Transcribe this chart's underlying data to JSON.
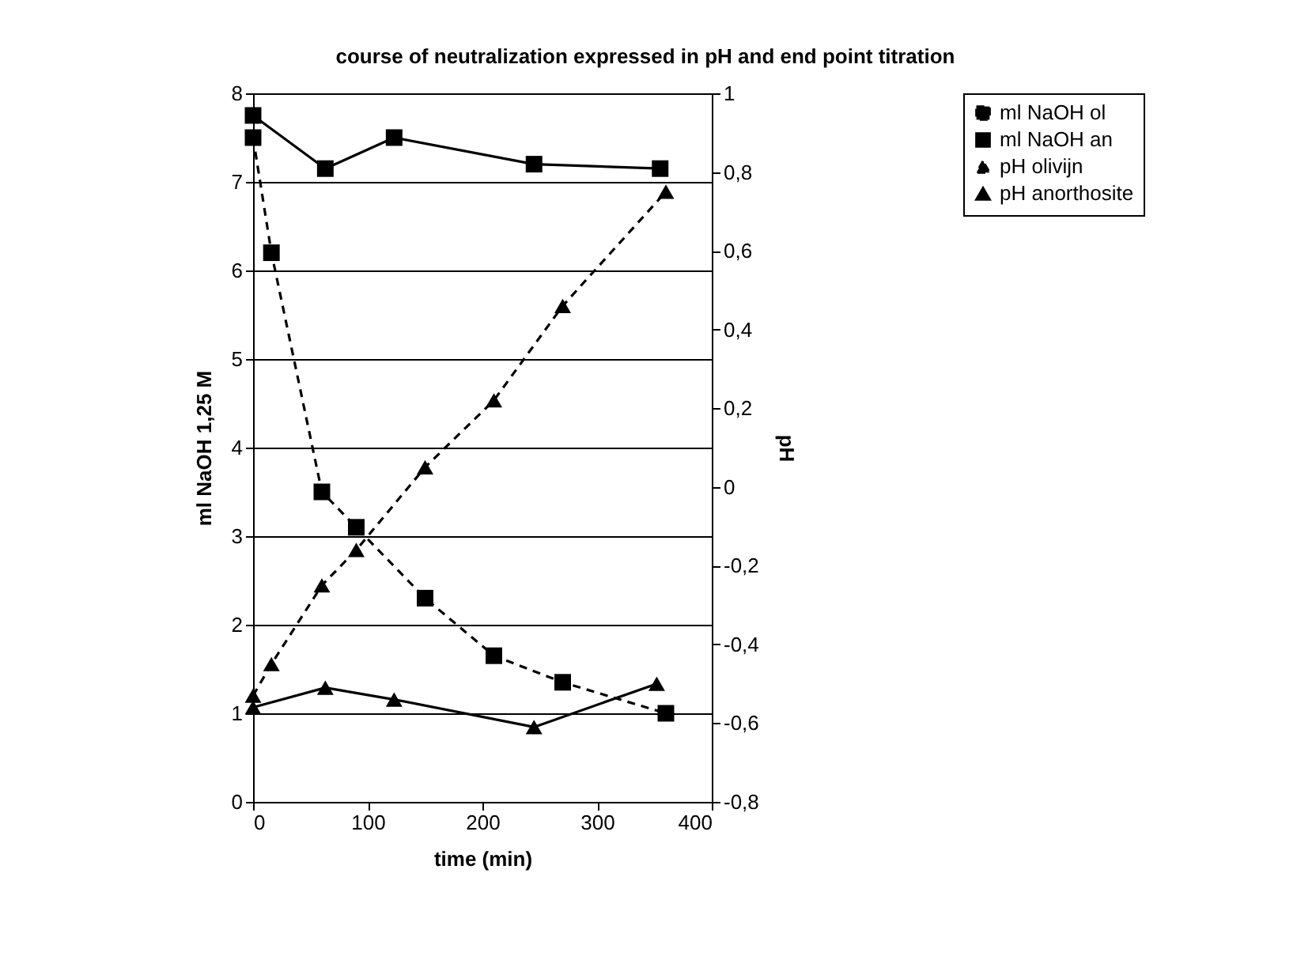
{
  "chart_data": {
    "type": "line",
    "title": "course of neutralization expressed in pH and end point titration",
    "xlabel": "time (min)",
    "ylabel": "ml NaOH 1,25 M",
    "y2label": "pH",
    "xlim": [
      0,
      400
    ],
    "xticks": [
      0,
      100,
      200,
      300,
      400
    ],
    "ylim": [
      0,
      8
    ],
    "yticks": [
      0,
      1,
      2,
      3,
      4,
      5,
      6,
      7,
      8
    ],
    "y2lim": [
      -0.8,
      1
    ],
    "y2ticks": [
      {
        "value": -0.8,
        "label": "-0,8"
      },
      {
        "value": -0.6,
        "label": "-0,6"
      },
      {
        "value": -0.4,
        "label": "-0,4"
      },
      {
        "value": -0.2,
        "label": "-0,2"
      },
      0,
      {
        "value": 0.2,
        "label": "0,2"
      },
      {
        "value": 0.4,
        "label": "0,4"
      },
      {
        "value": 0.6,
        "label": "0,6"
      },
      {
        "value": 0.8,
        "label": "0,8"
      },
      1
    ],
    "grid": "y",
    "legend": "right",
    "series": [
      {
        "name": "ml NaOH ol",
        "color": "#000000",
        "marker": "square",
        "line_style": "dashed",
        "x": [
          0,
          16,
          60,
          90,
          150,
          210,
          270,
          360
        ],
        "values": [
          7.5,
          6.2,
          3.5,
          3.1,
          2.3,
          1.65,
          1.35,
          1.0
        ]
      },
      {
        "name": "ml NaOH an",
        "color": "#000000",
        "marker": "square",
        "line_style": "solid",
        "x": [
          0,
          63,
          123,
          245,
          355
        ],
        "values": [
          7.75,
          7.15,
          7.5,
          7.2,
          7.15
        ]
      },
      {
        "name": "pH olivijn",
        "color": "#000000",
        "marker": "triangle",
        "line_style": "dashed",
        "axis": "y2",
        "x": [
          0,
          16,
          60,
          90,
          150,
          210,
          270,
          360
        ],
        "values": [
          -0.53,
          -0.45,
          -0.25,
          -0.16,
          0.05,
          0.22,
          0.46,
          0.75
        ]
      },
      {
        "name": "pH anorthosite",
        "color": "#000000",
        "marker": "triangle",
        "line_style": "solid",
        "axis": "y2",
        "x": [
          0,
          63,
          123,
          245,
          352
        ],
        "values": [
          -0.56,
          -0.51,
          -0.54,
          -0.61,
          -0.5
        ]
      }
    ]
  }
}
